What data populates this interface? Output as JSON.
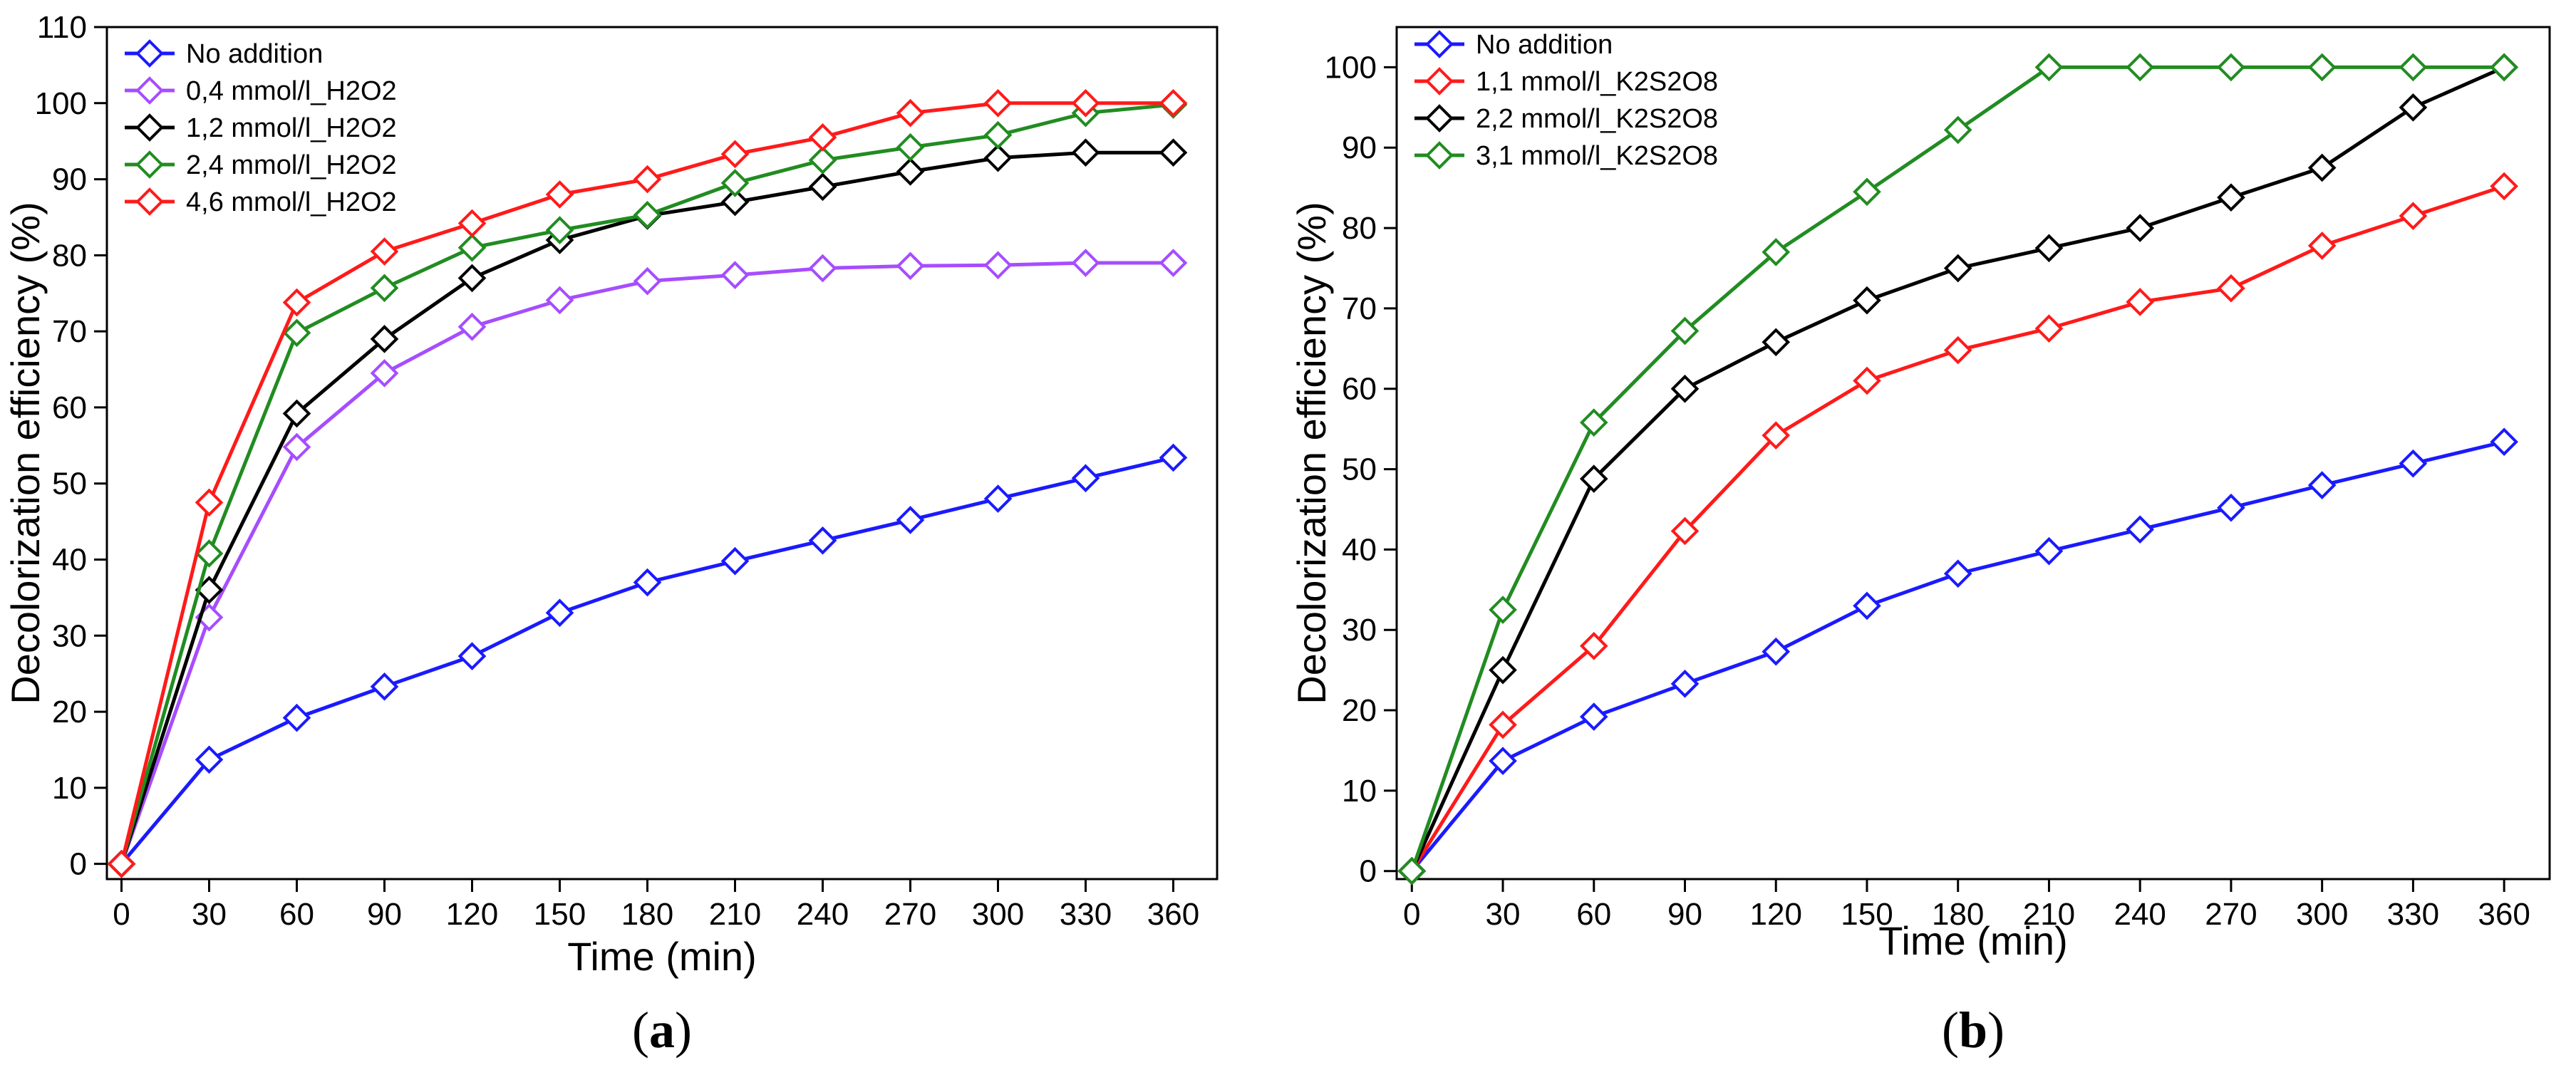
{
  "chart_data": [
    {
      "type": "line",
      "panel": "a",
      "panel_label": "a",
      "xlabel": "Time (min)",
      "ylabel": "Decolorization efficiency (%)",
      "xlim": [
        -5,
        375
      ],
      "ylim": [
        -2,
        110
      ],
      "xticks": [
        0,
        30,
        60,
        90,
        120,
        150,
        180,
        210,
        240,
        270,
        300,
        330,
        360
      ],
      "yticks": [
        0,
        10,
        20,
        30,
        40,
        50,
        60,
        70,
        80,
        90,
        100,
        110
      ],
      "legend_position": "top-left",
      "marker": "open-diamond",
      "x": [
        0,
        30,
        60,
        90,
        120,
        150,
        180,
        210,
        240,
        270,
        300,
        330,
        360
      ],
      "series": [
        {
          "name": "No addition",
          "color": "#1a1aff",
          "values": [
            0,
            13.7,
            19.2,
            23.3,
            27.3,
            33.0,
            37.0,
            39.8,
            42.5,
            45.2,
            48.0,
            50.7,
            53.4
          ]
        },
        {
          "name": "0,4 mmol/l_H2O2",
          "color": "#a64dff",
          "values": [
            0,
            32.4,
            54.8,
            64.5,
            70.6,
            74.1,
            76.6,
            77.4,
            78.3,
            78.6,
            78.7,
            79.0,
            79.0
          ]
        },
        {
          "name": "1,2 mmol/l_H2O2",
          "color": "#000000",
          "values": [
            0,
            36.0,
            59.2,
            69.0,
            77.0,
            82.0,
            85.2,
            87.0,
            89.0,
            91.0,
            92.8,
            93.5,
            93.5
          ]
        },
        {
          "name": "2,4 mmol/l_H2O2",
          "color": "#218c21",
          "values": [
            0,
            40.8,
            69.8,
            75.7,
            81.0,
            83.3,
            85.3,
            89.5,
            92.5,
            94.2,
            95.8,
            98.7,
            99.8
          ]
        },
        {
          "name": "4,6 mmol/l_H2O2",
          "color": "#ff1a1a",
          "values": [
            0,
            47.5,
            73.8,
            80.5,
            84.2,
            88.0,
            90.0,
            93.3,
            95.5,
            98.7,
            100,
            100,
            100
          ]
        }
      ]
    },
    {
      "type": "line",
      "panel": "b",
      "panel_label": "b",
      "xlabel": "Time (min)",
      "ylabel": "Decolorization efficiency (%)",
      "xlim": [
        -5,
        375
      ],
      "ylim": [
        -1,
        105
      ],
      "xticks": [
        0,
        30,
        60,
        90,
        120,
        150,
        180,
        210,
        240,
        270,
        300,
        330,
        360
      ],
      "yticks": [
        0,
        10,
        20,
        30,
        40,
        50,
        60,
        70,
        80,
        90,
        100
      ],
      "legend_position": "top-left",
      "marker": "open-diamond",
      "x": [
        0,
        30,
        60,
        90,
        120,
        150,
        180,
        210,
        240,
        270,
        300,
        330,
        360
      ],
      "series": [
        {
          "name": "No addition",
          "color": "#1a1aff",
          "values": [
            0,
            13.7,
            19.2,
            23.3,
            27.3,
            33.0,
            37.0,
            39.8,
            42.5,
            45.2,
            48.0,
            50.7,
            53.4
          ]
        },
        {
          "name": "1,1 mmol/l_K2S2O8",
          "color": "#ff1a1a",
          "values": [
            0,
            18.2,
            28.0,
            42.3,
            54.2,
            61.0,
            64.8,
            67.5,
            70.8,
            72.5,
            77.8,
            81.5,
            85.2
          ]
        },
        {
          "name": "2,2 mmol/l_K2S2O8",
          "color": "#000000",
          "values": [
            0,
            25.0,
            48.8,
            60.0,
            65.8,
            71.0,
            75.0,
            77.5,
            80.0,
            83.8,
            87.5,
            95.0,
            100
          ]
        },
        {
          "name": "3,1 mmol/l_K2S2O8",
          "color": "#218c21",
          "values": [
            0,
            32.5,
            55.8,
            67.2,
            77.0,
            84.5,
            92.2,
            100,
            100,
            100,
            100,
            100,
            100
          ]
        }
      ]
    }
  ]
}
